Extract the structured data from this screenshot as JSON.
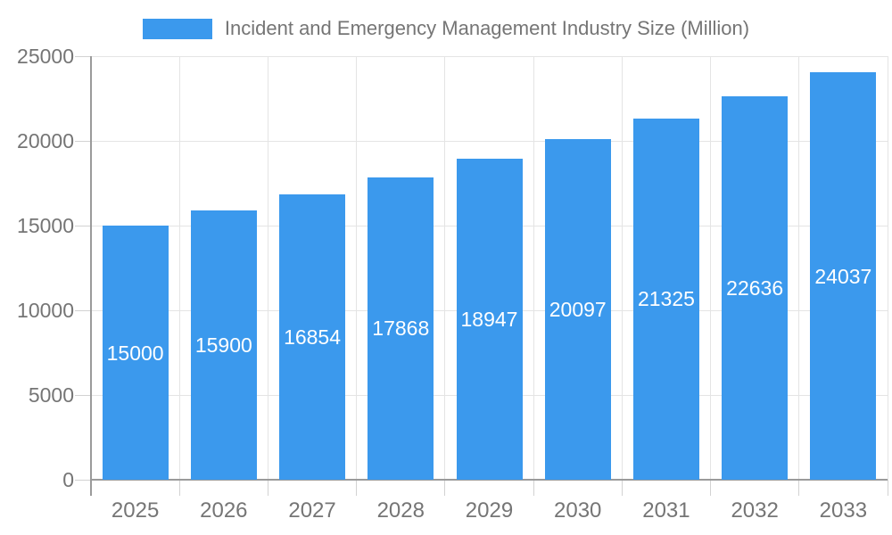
{
  "legend": {
    "label": "Incident and Emergency Management Industry Size (Million)"
  },
  "chart_data": {
    "type": "bar",
    "title": "",
    "legend_label": "Incident and Emergency Management Industry Size (Million)",
    "legend_position": "top-center",
    "categories": [
      "2025",
      "2026",
      "2027",
      "2028",
      "2029",
      "2030",
      "2031",
      "2032",
      "2033"
    ],
    "values": [
      15000,
      15900,
      16854,
      17868,
      18947,
      20097,
      21325,
      22636,
      24037
    ],
    "value_labels": [
      "15000",
      "15900",
      "16854",
      "17868",
      "18947",
      "20097",
      "21325",
      "22636",
      "24037"
    ],
    "value_label_position": "inside-middle",
    "xlabel": "",
    "ylabel": "",
    "ylim": [
      0,
      25000
    ],
    "yticks": [
      0,
      5000,
      10000,
      15000,
      20000,
      25000
    ],
    "ytick_labels": [
      "0",
      "5000",
      "10000",
      "15000",
      "20000",
      "25000"
    ],
    "grid": true,
    "colors": {
      "bar": "#3B99ED",
      "value_label_text": "#FFFFFF",
      "axis_text": "#757575",
      "legend_text": "#757575",
      "gridline": "#E4E4E4",
      "axis_line": "#9A9A9A",
      "tick": "#D2D2D2",
      "background": "#FFFFFF"
    }
  }
}
